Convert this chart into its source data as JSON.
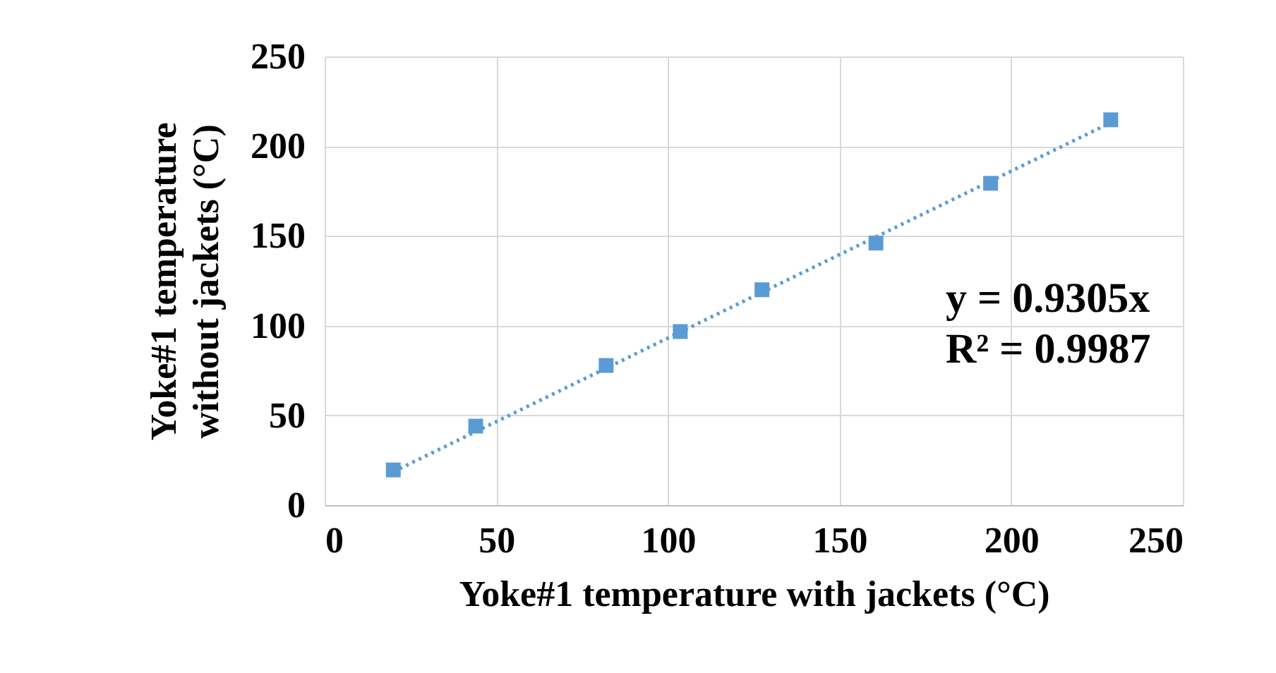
{
  "chart_data": {
    "type": "scatter",
    "xlabel": "Yoke#1 temperature with jackets (°C)",
    "ylabel": "Yoke#1 temperature without jackets (°C)",
    "xlim": [
      0,
      250
    ],
    "xticks": [
      0,
      50,
      100,
      150,
      200,
      250
    ],
    "ylim": [
      0,
      250
    ],
    "yticks": [
      0,
      50,
      100,
      150,
      200,
      250
    ],
    "grid": true,
    "marker": "square",
    "series": [
      {
        "color": "#5b9bd5",
        "x": [
          20,
          44,
          82,
          103.6,
          127.4,
          160.6,
          194,
          229
        ],
        "values": [
          19.6,
          44,
          77.8,
          96.7,
          120,
          146,
          179.3,
          214.7
        ]
      },
      {
        "type": "line",
        "color": "#5b9bd5",
        "line_style": "dotted",
        "marker": "none",
        "x": [
          20,
          229
        ],
        "values": [
          18.6,
          213.1
        ]
      }
    ],
    "annotations": [
      "y = 0.9305x",
      "R² = 0.9987"
    ]
  }
}
